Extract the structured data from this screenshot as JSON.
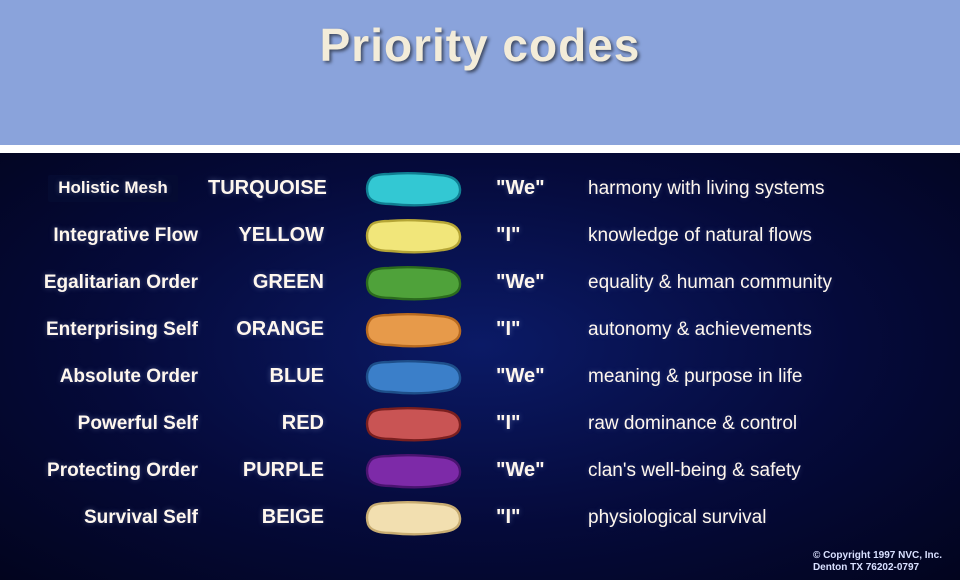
{
  "header": {
    "title": "Priority codes",
    "bg": "#8aa3db",
    "title_color": "#f3ecd9"
  },
  "chart": {
    "bg_center": "#0b1a66",
    "bg_edge": "#02041e",
    "text_color": "#fff7ee",
    "rows": [
      {
        "name": "Holistic Mesh",
        "color_label": "TURQUOISE",
        "pronoun": "\"We\"",
        "desc": "harmony with living systems",
        "swatch_fill": "#33c8d3",
        "swatch_stroke": "#107f92",
        "boxed": true
      },
      {
        "name": "Integrative Flow",
        "color_label": "YELLOW",
        "pronoun": "\"I\"",
        "desc": "knowledge of natural flows",
        "swatch_fill": "#f1e67a",
        "swatch_stroke": "#b5a536",
        "boxed": false
      },
      {
        "name": "Egalitarian Order",
        "color_label": "GREEN",
        "pronoun": "\"We\"",
        "desc": "equality & human community",
        "swatch_fill": "#4fa23a",
        "swatch_stroke": "#2b6b1d",
        "boxed": false
      },
      {
        "name": "Enterprising Self",
        "color_label": "ORANGE",
        "pronoun": "\"I\"",
        "desc": "autonomy & achievements",
        "swatch_fill": "#e79a4a",
        "swatch_stroke": "#b96a1f",
        "boxed": false
      },
      {
        "name": "Absolute Order",
        "color_label": "BLUE",
        "pronoun": "\"We\"",
        "desc": "meaning & purpose in life",
        "swatch_fill": "#3b7fc9",
        "swatch_stroke": "#1e4f8a",
        "boxed": false
      },
      {
        "name": "Powerful Self",
        "color_label": "RED",
        "pronoun": "\"I\"",
        "desc": "raw dominance & control",
        "swatch_fill": "#c95454",
        "swatch_stroke": "#7a1f1f",
        "boxed": false
      },
      {
        "name": "Protecting Order",
        "color_label": "PURPLE",
        "pronoun": "\"We\"",
        "desc": "clan's well-being & safety",
        "swatch_fill": "#7d2aa8",
        "swatch_stroke": "#4a1470",
        "boxed": false
      },
      {
        "name": "Survival Self",
        "color_label": "BEIGE",
        "pronoun": "\"I\"",
        "desc": "physiological survival",
        "swatch_fill": "#f2dfb0",
        "swatch_stroke": "#c9ad72",
        "boxed": false
      }
    ]
  },
  "copyright": {
    "line1": "© Copyright 1997 NVC, Inc.",
    "line2": "Denton TX 76202-0797"
  }
}
